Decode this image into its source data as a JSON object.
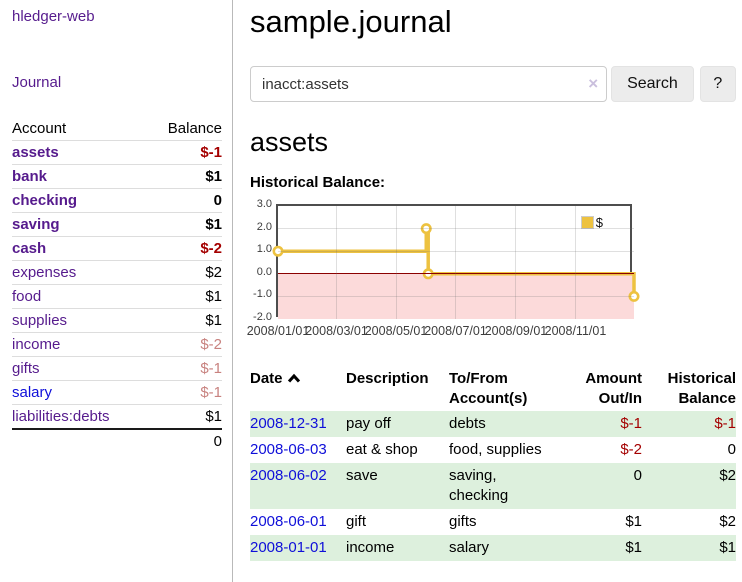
{
  "sidebar": {
    "brand": "hledger-web",
    "journal_link": "Journal",
    "accounts": {
      "col_account": "Account",
      "col_balance": "Balance",
      "rows": [
        {
          "name": "assets",
          "balance": "$-1"
        },
        {
          "name": "bank",
          "balance": "$1"
        },
        {
          "name": "checking",
          "balance": "0"
        },
        {
          "name": "saving",
          "balance": "$1"
        },
        {
          "name": "cash",
          "balance": "$-2"
        },
        {
          "name": "expenses",
          "balance": "$2"
        },
        {
          "name": "food",
          "balance": "$1"
        },
        {
          "name": "supplies",
          "balance": "$1"
        },
        {
          "name": "income",
          "balance": "$-2"
        },
        {
          "name": "gifts",
          "balance": "$-1"
        },
        {
          "name": "salary",
          "balance": "$-1"
        },
        {
          "name": "liabilities:debts",
          "balance": "$1"
        }
      ],
      "total": "0"
    }
  },
  "main": {
    "title": "sample.journal",
    "search": {
      "value": "inacct:assets",
      "clear_icon": "×",
      "search_button": "Search",
      "help_button": "?"
    },
    "heading": "assets",
    "register": {
      "headers": {
        "date": "Date",
        "description": "Description",
        "tofrom": "To/From Account(s)",
        "amount": "Amount Out/In",
        "balance": "Historical Balance"
      },
      "rows": [
        {
          "date": "2008-12-31",
          "description": "pay off",
          "accounts": "debts",
          "amount": "$-1",
          "balance": "$-1"
        },
        {
          "date": "2008-06-03",
          "description": "eat & shop",
          "accounts": "food, supplies",
          "amount": "$-2",
          "balance": "0"
        },
        {
          "date": "2008-06-02",
          "description": "save",
          "accounts": "saving, checking",
          "amount": "0",
          "balance": "$2"
        },
        {
          "date": "2008-06-01",
          "description": "gift",
          "accounts": "gifts",
          "amount": "$1",
          "balance": "$2"
        },
        {
          "date": "2008-01-01",
          "description": "income",
          "accounts": "salary",
          "amount": "$1",
          "balance": "$1"
        }
      ]
    }
  },
  "chart_data": {
    "type": "line",
    "step": true,
    "title": "Historical Balance:",
    "series": [
      {
        "name": "$",
        "color": "#edc240",
        "points": [
          [
            "2008-01-01",
            1
          ],
          [
            "2008-06-01",
            2
          ],
          [
            "2008-06-03",
            0
          ],
          [
            "2008-12-31",
            -1
          ]
        ]
      }
    ],
    "x_range": [
      "2008-01-01",
      "2008-12-31"
    ],
    "x_ticks": [
      "2008/01/01",
      "2008/03/01",
      "2008/05/01",
      "2008/07/01",
      "2008/09/01",
      "2008/11/01"
    ],
    "y_ticks": [
      3.0,
      2.0,
      1.0,
      0.0,
      -1.0,
      -2.0
    ],
    "ylim": [
      -2,
      3
    ],
    "grid": true,
    "zero_line_color": "#8b0000",
    "negative_region_color": "#fcdada",
    "legend": {
      "label": "$",
      "position": "top-right"
    }
  }
}
